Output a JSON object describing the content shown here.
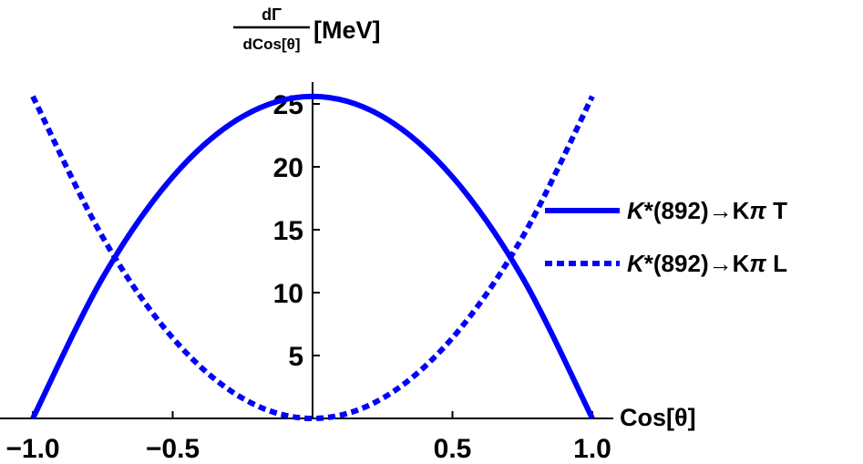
{
  "chart_data": {
    "type": "line",
    "xlabel": "Cos[θ]",
    "ylabel": {
      "numerator": "dΓ",
      "denominator": "dCos[θ]",
      "unit": "[MeV]"
    },
    "xlim": [
      -1.0,
      1.0
    ],
    "ylim": [
      0,
      26
    ],
    "x_ticks": [
      "-1.0",
      "-0.5",
      "0.5",
      "1.0"
    ],
    "x_tick_values": [
      -1.0,
      -0.5,
      0.5,
      1.0
    ],
    "y_ticks": [
      "5",
      "10",
      "15",
      "20",
      "25"
    ],
    "y_tick_values": [
      5,
      10,
      15,
      20,
      25
    ],
    "grid": false,
    "legend_position": "right",
    "series": [
      {
        "name": "K*(892)→Kπ T",
        "name_parts": {
          "particle": "K",
          "rest": "*(892)→K",
          "pi": "π",
          "suffix": " T"
        },
        "style": "solid",
        "color": "#0000ff",
        "x": [
          -1.0,
          -0.75,
          -0.5,
          -0.25,
          0.0,
          0.25,
          0.5,
          0.75,
          1.0
        ],
        "y": [
          0.0,
          11.2,
          19.2,
          24.0,
          25.6,
          24.0,
          19.2,
          11.2,
          0.0
        ]
      },
      {
        "name": "K*(892)→Kπ L",
        "name_parts": {
          "particle": "K",
          "rest": "*(892)→K",
          "pi": "π",
          "suffix": " L"
        },
        "style": "dashed",
        "color": "#0000ff",
        "x": [
          -1.0,
          -0.75,
          -0.5,
          -0.25,
          0.0,
          0.25,
          0.5,
          0.75,
          1.0
        ],
        "y": [
          25.6,
          14.4,
          6.4,
          1.6,
          0.0,
          1.6,
          6.4,
          14.4,
          25.6
        ]
      }
    ]
  }
}
